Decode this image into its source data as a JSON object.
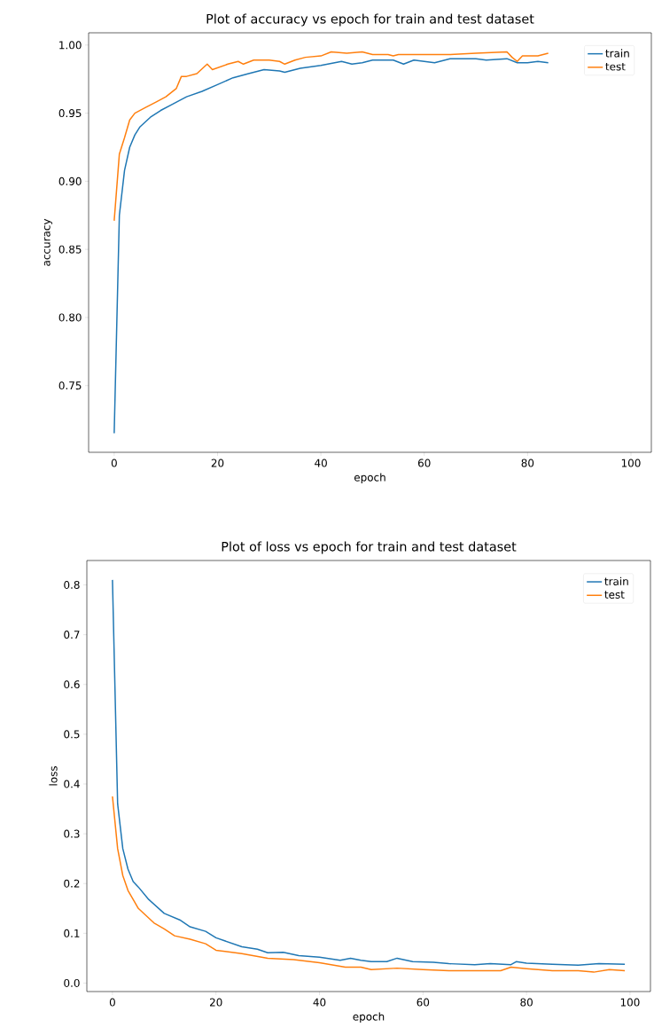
{
  "chart_data": [
    {
      "type": "line",
      "title": "Plot of accuracy vs epoch for train and test dataset",
      "xlabel": "epoch",
      "ylabel": "accuracy",
      "legend": "top right",
      "line_style": "solid",
      "marker": "none",
      "xlim": [
        -4.95,
        103.95
      ],
      "ylim": [
        0.701,
        1.009
      ],
      "xticks": [
        0,
        20,
        40,
        60,
        80,
        100
      ],
      "yticks": [
        {
          "value": 0.75,
          "label": "0.75"
        },
        {
          "value": 0.8,
          "label": "0.80"
        },
        {
          "value": 0.85,
          "label": "0.85"
        },
        {
          "value": 0.9,
          "label": "0.90"
        },
        {
          "value": 0.95,
          "label": "0.95"
        },
        {
          "value": 1.0,
          "label": "1.00"
        }
      ],
      "series": [
        {
          "name": "train",
          "color": "#1f77b4",
          "x": [
            0,
            1,
            2,
            3,
            4,
            5,
            7,
            9,
            11,
            14,
            17,
            20,
            23,
            26,
            29,
            32,
            33,
            36,
            40,
            44,
            46,
            48,
            50,
            54,
            56,
            58,
            62,
            65,
            70,
            72,
            76,
            78,
            80,
            82,
            84
          ],
          "values": [
            0.715,
            0.875,
            0.908,
            0.925,
            0.934,
            0.94,
            0.947,
            0.952,
            0.956,
            0.962,
            0.966,
            0.971,
            0.976,
            0.979,
            0.982,
            0.981,
            0.98,
            0.983,
            0.985,
            0.988,
            0.986,
            0.987,
            0.989,
            0.989,
            0.986,
            0.989,
            0.987,
            0.99,
            0.99,
            0.989,
            0.99,
            0.987,
            0.987,
            0.988,
            0.987
          ]
        },
        {
          "name": "test",
          "color": "#ff7f0e",
          "x": [
            0,
            1,
            2,
            3,
            4,
            6,
            8,
            10,
            12,
            13,
            14,
            16,
            18,
            19,
            22,
            24,
            25,
            27,
            30,
            32,
            33,
            35,
            37,
            40,
            42,
            45,
            48,
            50,
            53,
            54,
            55,
            60,
            65,
            70,
            76,
            77,
            78,
            79,
            82,
            84
          ],
          "values": [
            0.871,
            0.92,
            0.932,
            0.945,
            0.95,
            0.954,
            0.958,
            0.962,
            0.968,
            0.977,
            0.977,
            0.979,
            0.986,
            0.982,
            0.986,
            0.988,
            0.986,
            0.989,
            0.989,
            0.988,
            0.986,
            0.989,
            0.991,
            0.992,
            0.995,
            0.994,
            0.995,
            0.993,
            0.993,
            0.992,
            0.993,
            0.993,
            0.993,
            0.994,
            0.995,
            0.991,
            0.988,
            0.992,
            0.992,
            0.994
          ]
        }
      ]
    },
    {
      "type": "line",
      "title": "Plot of loss vs epoch for train and test dataset",
      "xlabel": "epoch",
      "ylabel": "loss",
      "legend": "top right",
      "line_style": "solid",
      "marker": "none",
      "xlim": [
        -4.95,
        103.95
      ],
      "ylim": [
        -0.017,
        0.849
      ],
      "xticks": [
        0,
        20,
        40,
        60,
        80,
        100
      ],
      "yticks": [
        {
          "value": 0,
          "label": "0.0"
        },
        {
          "value": 0.1,
          "label": "0.1"
        },
        {
          "value": 0.2,
          "label": "0.2"
        },
        {
          "value": 0.3,
          "label": "0.3"
        },
        {
          "value": 0.4,
          "label": "0.4"
        },
        {
          "value": 0.5,
          "label": "0.5"
        },
        {
          "value": 0.6,
          "label": "0.6"
        },
        {
          "value": 0.7,
          "label": "0.7"
        },
        {
          "value": 0.8,
          "label": "0.8"
        }
      ],
      "series": [
        {
          "name": "train",
          "color": "#1f77b4",
          "x": [
            0,
            1,
            2,
            3,
            4,
            5,
            7,
            10,
            13,
            15,
            18,
            20,
            25,
            28,
            30,
            33,
            36,
            40,
            44,
            46,
            48,
            50,
            53,
            55,
            58,
            62,
            65,
            70,
            73,
            77,
            78,
            80,
            85,
            90,
            94,
            99
          ],
          "values": [
            0.81,
            0.36,
            0.27,
            0.229,
            0.204,
            0.193,
            0.168,
            0.14,
            0.127,
            0.113,
            0.104,
            0.091,
            0.073,
            0.068,
            0.061,
            0.062,
            0.055,
            0.052,
            0.046,
            0.05,
            0.046,
            0.043,
            0.043,
            0.05,
            0.043,
            0.042,
            0.039,
            0.037,
            0.039,
            0.037,
            0.043,
            0.04,
            0.038,
            0.036,
            0.039,
            0.038
          ]
        },
        {
          "name": "test",
          "color": "#ff7f0e",
          "x": [
            0,
            1,
            2,
            3,
            5,
            8,
            10,
            12,
            15,
            18,
            20,
            25,
            30,
            35,
            40,
            45,
            48,
            50,
            55,
            60,
            65,
            70,
            75,
            77,
            80,
            85,
            90,
            93,
            96,
            99
          ],
          "values": [
            0.375,
            0.27,
            0.216,
            0.186,
            0.15,
            0.121,
            0.109,
            0.095,
            0.088,
            0.079,
            0.066,
            0.059,
            0.05,
            0.047,
            0.041,
            0.032,
            0.032,
            0.027,
            0.03,
            0.027,
            0.025,
            0.025,
            0.025,
            0.032,
            0.029,
            0.025,
            0.025,
            0.022,
            0.027,
            0.025
          ]
        }
      ]
    }
  ]
}
